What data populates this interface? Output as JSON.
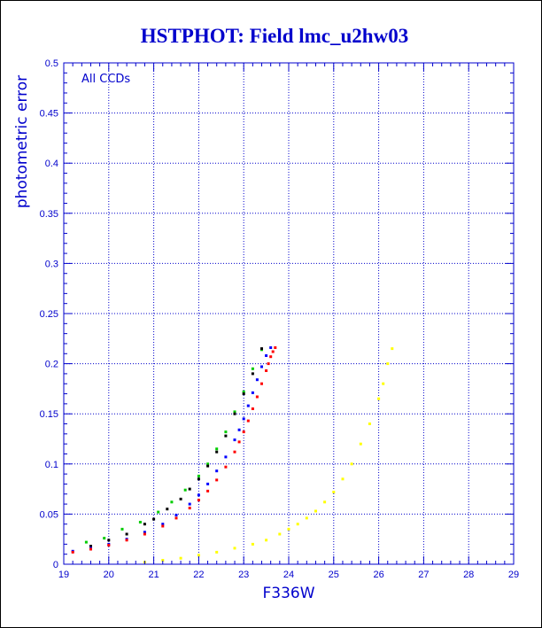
{
  "chart_data": {
    "type": "scatter",
    "title": "HSTPHOT: Field lmc_u2hw03",
    "xlabel": "F336W",
    "ylabel": "photometric error",
    "annotation": "All CCDs",
    "xlim": [
      19,
      29
    ],
    "ylim": [
      0,
      0.5
    ],
    "xticks": [
      "19",
      "20",
      "21",
      "22",
      "23",
      "24",
      "25",
      "26",
      "27",
      "28",
      "29"
    ],
    "yticks": [
      "0",
      "0.05",
      "0.1",
      "0.15",
      "0.2",
      "0.25",
      "0.3",
      "0.35",
      "0.4",
      "0.45",
      "0.5"
    ],
    "grid": true,
    "grid_style": "dotted",
    "colors": {
      "axis": "#0000cc",
      "grid": "#0000cc",
      "text": "#0000cc"
    },
    "series": [
      {
        "color": "#ff0000",
        "x": [
          19.2,
          19.6,
          20.0,
          20.4,
          20.8,
          21.2,
          21.5,
          21.8,
          22.0,
          22.2,
          22.4,
          22.6,
          22.8,
          22.9,
          23.0,
          23.1,
          23.2,
          23.3,
          23.4,
          23.5,
          23.55,
          23.6,
          23.65,
          23.7
        ],
        "y": [
          0.012,
          0.015,
          0.019,
          0.024,
          0.03,
          0.038,
          0.046,
          0.056,
          0.064,
          0.073,
          0.084,
          0.097,
          0.112,
          0.122,
          0.132,
          0.143,
          0.155,
          0.167,
          0.18,
          0.193,
          0.2,
          0.207,
          0.212,
          0.216
        ]
      },
      {
        "color": "#0000ff",
        "x": [
          19.2,
          19.6,
          20.0,
          20.4,
          20.8,
          21.2,
          21.5,
          21.8,
          22.0,
          22.2,
          22.4,
          22.6,
          22.8,
          22.9,
          23.0,
          23.1,
          23.2,
          23.3,
          23.4,
          23.5,
          23.6
        ],
        "y": [
          0.013,
          0.016,
          0.02,
          0.025,
          0.032,
          0.04,
          0.049,
          0.06,
          0.069,
          0.08,
          0.093,
          0.107,
          0.124,
          0.134,
          0.145,
          0.158,
          0.171,
          0.184,
          0.197,
          0.208,
          0.216
        ]
      },
      {
        "color": "#000000",
        "x": [
          19.6,
          20.0,
          20.4,
          20.8,
          21.0,
          21.3,
          21.6,
          21.8,
          22.0,
          22.2,
          22.4,
          22.6,
          22.8,
          23.0,
          23.2,
          23.4
        ],
        "y": [
          0.018,
          0.024,
          0.03,
          0.04,
          0.045,
          0.055,
          0.065,
          0.075,
          0.085,
          0.098,
          0.112,
          0.128,
          0.15,
          0.17,
          0.19,
          0.215
        ]
      },
      {
        "color": "#00cc00",
        "x": [
          19.5,
          19.9,
          20.3,
          20.7,
          21.1,
          21.4,
          21.7,
          22.0,
          22.2,
          22.4,
          22.6,
          22.8,
          23.0,
          23.2,
          23.4
        ],
        "y": [
          0.022,
          0.026,
          0.035,
          0.042,
          0.052,
          0.062,
          0.074,
          0.088,
          0.1,
          0.115,
          0.132,
          0.152,
          0.172,
          0.195,
          0.214
        ]
      },
      {
        "color": "#ffff00",
        "x": [
          20.8,
          21.2,
          21.6,
          22.0,
          22.4,
          22.8,
          23.2,
          23.5,
          23.8,
          24.0,
          24.2,
          24.4,
          24.6,
          24.8,
          25.0,
          25.2,
          25.4,
          25.6,
          25.8,
          26.0,
          26.1,
          26.2,
          26.3
        ],
        "y": [
          0.002,
          0.004,
          0.006,
          0.009,
          0.012,
          0.016,
          0.02,
          0.024,
          0.03,
          0.035,
          0.04,
          0.046,
          0.053,
          0.062,
          0.072,
          0.085,
          0.1,
          0.12,
          0.14,
          0.165,
          0.18,
          0.2,
          0.215
        ]
      }
    ]
  }
}
